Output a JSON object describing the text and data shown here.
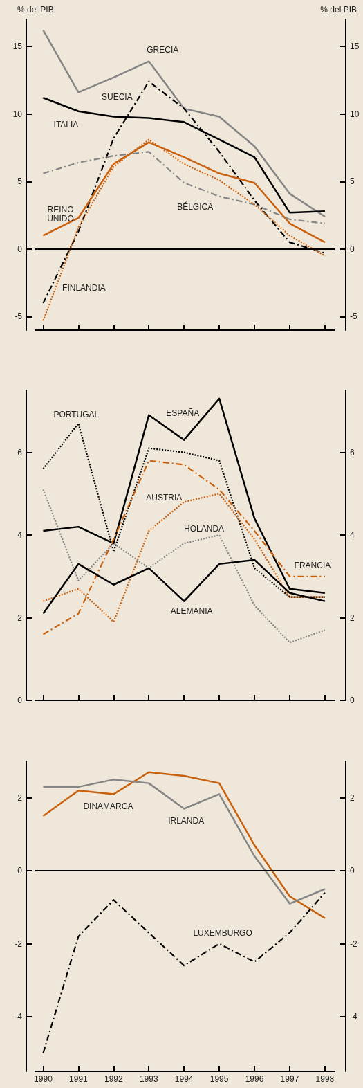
{
  "chart_data": [
    {
      "type": "line",
      "ylabel": "% del PIB",
      "y2label": "% del PIB",
      "categories": [
        "1990",
        "1991",
        "1992",
        "1993",
        "1994",
        "1995",
        "1996",
        "1997",
        "1998"
      ],
      "ylim": [
        -6,
        17
      ],
      "yticks": [
        -5,
        0,
        5,
        10,
        15
      ],
      "y2lim": [
        -6,
        17
      ],
      "y2ticks": [
        -5,
        0,
        5,
        10,
        15
      ],
      "tick_labels": "y",
      "marker": "none",
      "ref_lines": [
        {
          "axis": "y",
          "value": 0,
          "color": "#000000",
          "line_style": "solid"
        }
      ],
      "series": [
        {
          "name": "GRECIA",
          "color": "#858585",
          "line_style": "solid",
          "values": [
            16.2,
            11.6,
            12.7,
            13.9,
            10.4,
            9.8,
            7.6,
            4.1,
            2.4
          ]
        },
        {
          "name": "SUECIA",
          "color": "#000000",
          "line_style": "dashed",
          "values": [
            -4.0,
            1.3,
            8.2,
            12.4,
            10.4,
            7.2,
            3.6,
            0.5,
            -0.3
          ]
        },
        {
          "name": "ITALIA",
          "color": "#000000",
          "line_style": "solid",
          "values": [
            11.2,
            10.2,
            9.8,
            9.7,
            9.4,
            8.1,
            6.8,
            2.7,
            2.8
          ]
        },
        {
          "name": "REINO UNIDO",
          "color": "#c8600e",
          "line_style": "solid",
          "values": [
            1.0,
            2.3,
            6.3,
            7.9,
            6.8,
            5.6,
            4.9,
            1.9,
            0.5
          ]
        },
        {
          "name": "BÉLGICA",
          "color": "#858585",
          "line_style": "dashed",
          "values": [
            5.6,
            6.4,
            6.9,
            7.2,
            4.9,
            3.9,
            3.3,
            2.2,
            1.9
          ]
        },
        {
          "name": "FINLANDIA",
          "color": "#c8600e",
          "line_style": "dotted",
          "values": [
            -5.3,
            1.6,
            6.1,
            8.1,
            6.3,
            5.1,
            3.3,
            1.0,
            -0.5
          ]
        }
      ]
    },
    {
      "type": "line",
      "categories": [
        "1990",
        "1991",
        "1992",
        "1993",
        "1994",
        "1995",
        "1996",
        "1997",
        "1998"
      ],
      "ylim": [
        0,
        7.5
      ],
      "yticks": [
        0,
        2,
        4,
        6
      ],
      "y2lim": [
        0,
        7.5
      ],
      "y2ticks": [
        0,
        2,
        4,
        6
      ],
      "tick_labels": "y",
      "marker": "none",
      "series": [
        {
          "name": "PORTUGAL",
          "color": "#000000",
          "line_style": "dotted",
          "values": [
            5.6,
            6.7,
            3.6,
            6.1,
            6.0,
            5.8,
            3.2,
            2.5,
            2.5
          ]
        },
        {
          "name": "ESPAÑA",
          "color": "#000000",
          "line_style": "solid",
          "values": [
            4.1,
            4.2,
            3.8,
            6.9,
            6.3,
            7.3,
            4.4,
            2.7,
            2.6
          ]
        },
        {
          "name": "AUSTRIA",
          "color": "#c8600e",
          "line_style": "dotted",
          "values": [
            2.4,
            2.7,
            1.9,
            4.1,
            4.8,
            5.0,
            3.9,
            2.5,
            2.5
          ]
        },
        {
          "name": "HOLANDA",
          "color": "#858585",
          "line_style": "dotted",
          "values": [
            5.1,
            2.9,
            3.8,
            3.2,
            3.8,
            4.0,
            2.3,
            1.4,
            1.7
          ]
        },
        {
          "name": "FRANCIA",
          "color": "#c8600e",
          "line_style": "dashed",
          "values": [
            1.6,
            2.1,
            3.9,
            5.8,
            5.7,
            5.1,
            4.1,
            3.0,
            3.0
          ]
        },
        {
          "name": "ALEMANIA",
          "color": "#000000",
          "line_style": "solid",
          "values": [
            2.1,
            3.3,
            2.8,
            3.2,
            2.4,
            3.3,
            3.4,
            2.6,
            2.4
          ]
        }
      ]
    },
    {
      "type": "line",
      "categories": [
        "1990",
        "1991",
        "1992",
        "1993",
        "1994",
        "1995",
        "1996",
        "1997",
        "1998"
      ],
      "ylim": [
        -5.5,
        3
      ],
      "yticks": [
        -4,
        -2,
        0,
        2
      ],
      "y2lim": [
        -5.5,
        3
      ],
      "y2ticks": [
        -4,
        -2,
        0,
        2
      ],
      "marker": "none",
      "ref_lines": [
        {
          "axis": "y",
          "value": 0,
          "color": "#000000",
          "line_style": "solid"
        }
      ],
      "series": [
        {
          "name": "DINAMARCA",
          "color": "#c8600e",
          "line_style": "solid",
          "values": [
            1.5,
            2.2,
            2.1,
            2.7,
            2.6,
            2.4,
            0.7,
            -0.7,
            -1.3
          ]
        },
        {
          "name": "IRLANDA",
          "color": "#858585",
          "line_style": "solid",
          "values": [
            2.3,
            2.3,
            2.5,
            2.4,
            1.7,
            2.1,
            0.4,
            -0.9,
            -0.5
          ]
        },
        {
          "name": "LUXEMBURGO",
          "color": "#000000",
          "line_style": "dashed",
          "values": [
            -5.0,
            -1.8,
            -0.8,
            -1.7,
            -2.6,
            -2.0,
            -2.5,
            -1.7,
            -0.6
          ]
        }
      ]
    }
  ]
}
